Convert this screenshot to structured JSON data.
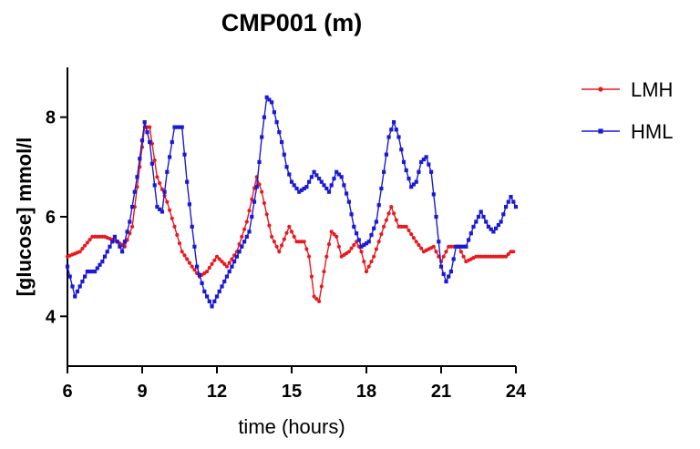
{
  "chart_data": {
    "type": "line",
    "title": "CMP001 (m)",
    "xlabel": "time (hours)",
    "ylabel": "[glucose] mmol/l",
    "xlim": [
      6,
      24
    ],
    "ylim": [
      3,
      9
    ],
    "xticks": [
      "6",
      "9",
      "12",
      "15",
      "18",
      "21",
      "24"
    ],
    "yticks": [
      "4",
      "6",
      "8"
    ],
    "grid": false,
    "legend_position": "top-right",
    "series": [
      {
        "name": "LMH",
        "color": "#e8191f",
        "points": [
          [
            6.0,
            5.2
          ],
          [
            6.5,
            5.3
          ],
          [
            7.0,
            5.6
          ],
          [
            7.5,
            5.6
          ],
          [
            8.0,
            5.5
          ],
          [
            8.3,
            5.4
          ],
          [
            8.6,
            5.8
          ],
          [
            8.9,
            7.0
          ],
          [
            9.1,
            7.8
          ],
          [
            9.3,
            7.8
          ],
          [
            9.6,
            6.8
          ],
          [
            10.0,
            6.3
          ],
          [
            10.3,
            5.8
          ],
          [
            10.6,
            5.3
          ],
          [
            11.0,
            5.0
          ],
          [
            11.3,
            4.8
          ],
          [
            11.6,
            4.9
          ],
          [
            12.0,
            5.2
          ],
          [
            12.4,
            5.0
          ],
          [
            12.8,
            5.3
          ],
          [
            13.2,
            5.9
          ],
          [
            13.6,
            6.8
          ],
          [
            13.8,
            6.5
          ],
          [
            14.2,
            5.6
          ],
          [
            14.5,
            5.3
          ],
          [
            14.9,
            5.8
          ],
          [
            15.2,
            5.5
          ],
          [
            15.5,
            5.5
          ],
          [
            15.7,
            5.2
          ],
          [
            15.9,
            4.4
          ],
          [
            16.1,
            4.3
          ],
          [
            16.4,
            5.2
          ],
          [
            16.6,
            5.7
          ],
          [
            16.8,
            5.6
          ],
          [
            17.0,
            5.2
          ],
          [
            17.3,
            5.3
          ],
          [
            17.6,
            5.5
          ],
          [
            17.8,
            5.3
          ],
          [
            18.0,
            4.9
          ],
          [
            18.3,
            5.2
          ],
          [
            18.7,
            5.8
          ],
          [
            19.0,
            6.2
          ],
          [
            19.3,
            5.8
          ],
          [
            19.6,
            5.8
          ],
          [
            20.0,
            5.5
          ],
          [
            20.3,
            5.3
          ],
          [
            20.7,
            5.4
          ],
          [
            21.0,
            5.1
          ],
          [
            21.3,
            5.4
          ],
          [
            21.7,
            5.4
          ],
          [
            22.0,
            5.1
          ],
          [
            22.4,
            5.2
          ],
          [
            22.8,
            5.2
          ],
          [
            23.3,
            5.2
          ],
          [
            23.6,
            5.2
          ],
          [
            23.8,
            5.3
          ],
          [
            23.9,
            5.3
          ]
        ]
      },
      {
        "name": "HML",
        "color": "#1a1ad6",
        "points": [
          [
            6.0,
            5.0
          ],
          [
            6.3,
            4.4
          ],
          [
            6.6,
            4.7
          ],
          [
            6.8,
            4.9
          ],
          [
            7.1,
            4.9
          ],
          [
            7.4,
            5.1
          ],
          [
            7.7,
            5.4
          ],
          [
            7.9,
            5.6
          ],
          [
            8.2,
            5.3
          ],
          [
            8.5,
            5.9
          ],
          [
            8.8,
            6.8
          ],
          [
            9.1,
            7.9
          ],
          [
            9.3,
            7.5
          ],
          [
            9.6,
            6.2
          ],
          [
            9.8,
            6.1
          ],
          [
            10.0,
            6.9
          ],
          [
            10.3,
            7.8
          ],
          [
            10.6,
            7.8
          ],
          [
            10.8,
            6.7
          ],
          [
            11.0,
            5.8
          ],
          [
            11.2,
            5.0
          ],
          [
            11.5,
            4.5
          ],
          [
            11.8,
            4.2
          ],
          [
            12.1,
            4.5
          ],
          [
            12.4,
            4.8
          ],
          [
            12.7,
            5.1
          ],
          [
            13.0,
            5.4
          ],
          [
            13.3,
            5.7
          ],
          [
            13.6,
            6.6
          ],
          [
            13.8,
            7.6
          ],
          [
            14.0,
            8.4
          ],
          [
            14.2,
            8.3
          ],
          [
            14.4,
            7.9
          ],
          [
            14.6,
            7.5
          ],
          [
            14.8,
            7.0
          ],
          [
            15.0,
            6.7
          ],
          [
            15.3,
            6.5
          ],
          [
            15.6,
            6.6
          ],
          [
            15.9,
            6.9
          ],
          [
            16.2,
            6.7
          ],
          [
            16.5,
            6.5
          ],
          [
            16.8,
            6.9
          ],
          [
            17.0,
            6.8
          ],
          [
            17.3,
            6.3
          ],
          [
            17.5,
            5.8
          ],
          [
            17.8,
            5.4
          ],
          [
            18.1,
            5.5
          ],
          [
            18.4,
            5.9
          ],
          [
            18.7,
            6.9
          ],
          [
            18.9,
            7.6
          ],
          [
            19.1,
            7.9
          ],
          [
            19.3,
            7.6
          ],
          [
            19.5,
            7.1
          ],
          [
            19.8,
            6.6
          ],
          [
            20.0,
            6.7
          ],
          [
            20.2,
            7.1
          ],
          [
            20.4,
            7.2
          ],
          [
            20.6,
            6.9
          ],
          [
            20.8,
            6.0
          ],
          [
            21.0,
            5.0
          ],
          [
            21.2,
            4.7
          ],
          [
            21.4,
            4.9
          ],
          [
            21.6,
            5.4
          ],
          [
            22.0,
            5.4
          ],
          [
            22.3,
            5.8
          ],
          [
            22.6,
            6.1
          ],
          [
            22.9,
            5.8
          ],
          [
            23.1,
            5.7
          ],
          [
            23.4,
            5.9
          ],
          [
            23.6,
            6.2
          ],
          [
            23.8,
            6.4
          ],
          [
            24.0,
            6.2
          ]
        ]
      }
    ]
  }
}
